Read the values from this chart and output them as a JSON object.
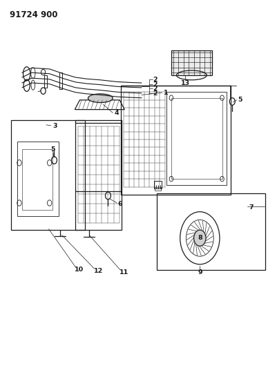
{
  "title_code": "91724 900",
  "bg_color": "#ffffff",
  "line_color": "#1a1a1a",
  "label_color": "#1a1a1a",
  "fig_width": 4.02,
  "fig_height": 5.33,
  "dpi": 100
}
